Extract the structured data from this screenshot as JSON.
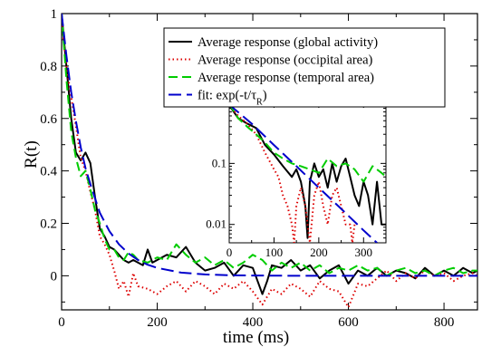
{
  "chart_data": [
    {
      "type": "line",
      "xlabel": "time (ms)",
      "ylabel": "R(t)",
      "xlim": [
        0,
        870
      ],
      "ylim": [
        -0.13,
        1.0
      ],
      "xticks": [
        0,
        200,
        400,
        600,
        800
      ],
      "yticks": [
        0,
        0.2,
        0.4,
        0.6,
        0.8,
        1
      ],
      "xtick_labels": [
        "0",
        "200",
        "400",
        "600",
        "800"
      ],
      "ytick_labels": [
        "0",
        "0.2",
        "0.4",
        "0.6",
        "0.8",
        "1"
      ],
      "legend_position": "top-right",
      "series": [
        {
          "name": "Average response (global activity)",
          "color": "#000000",
          "dash": "solid",
          "x": [
            0,
            10,
            20,
            30,
            40,
            50,
            60,
            70,
            80,
            90,
            100,
            110,
            120,
            130,
            140,
            150,
            160,
            170,
            180,
            190,
            200,
            220,
            240,
            260,
            280,
            300,
            320,
            340,
            360,
            380,
            400,
            410,
            420,
            430,
            440,
            460,
            480,
            500,
            520,
            540,
            560,
            580,
            600,
            620,
            640,
            660,
            680,
            700,
            720,
            740,
            760,
            780,
            800,
            820,
            840,
            860,
            870
          ],
          "y": [
            1.0,
            0.8,
            0.6,
            0.47,
            0.44,
            0.47,
            0.43,
            0.3,
            0.18,
            0.15,
            0.11,
            0.1,
            0.08,
            0.06,
            0.05,
            0.06,
            0.05,
            0.04,
            0.1,
            0.05,
            0.06,
            0.08,
            0.07,
            0.11,
            0.05,
            0.02,
            0.03,
            0.05,
            0.0,
            0.04,
            0.03,
            -0.02,
            -0.07,
            -0.02,
            0.04,
            0.03,
            0.06,
            0.02,
            0.04,
            -0.01,
            0.02,
            0.04,
            -0.03,
            0.02,
            0.0,
            0.03,
            0.0,
            0.02,
            0.01,
            -0.01,
            0.03,
            0.0,
            0.02,
            0.0,
            0.03,
            0.01,
            0.02
          ]
        },
        {
          "name": "Average response (occipital area)",
          "color": "#dd0000",
          "dash": "dotted",
          "x": [
            0,
            10,
            20,
            30,
            40,
            50,
            60,
            70,
            80,
            90,
            100,
            110,
            120,
            130,
            140,
            150,
            160,
            180,
            200,
            220,
            240,
            260,
            280,
            300,
            320,
            340,
            360,
            380,
            400,
            420,
            440,
            460,
            480,
            500,
            520,
            540,
            560,
            580,
            600,
            620,
            640,
            660,
            680,
            700,
            720,
            740,
            760,
            780,
            800,
            820,
            840,
            860,
            870
          ],
          "y": [
            0.97,
            0.8,
            0.68,
            0.57,
            0.45,
            0.4,
            0.32,
            0.25,
            0.15,
            0.12,
            0.08,
            0.02,
            -0.05,
            -0.02,
            -0.08,
            0.01,
            -0.04,
            -0.05,
            -0.07,
            -0.04,
            -0.02,
            -0.06,
            -0.02,
            -0.04,
            -0.07,
            -0.03,
            -0.05,
            -0.02,
            -0.06,
            -0.11,
            -0.05,
            -0.07,
            -0.03,
            -0.05,
            -0.08,
            -0.02,
            -0.05,
            -0.06,
            -0.12,
            -0.03,
            -0.04,
            -0.01,
            0.02,
            -0.02,
            0.01,
            -0.01,
            0.02,
            0.0,
            0.01,
            -0.02,
            0.0,
            0.01,
            0.0
          ]
        },
        {
          "name": "Average response (temporal area)",
          "color": "#00cc00",
          "dash": "longdash",
          "x": [
            0,
            10,
            20,
            30,
            40,
            50,
            60,
            70,
            80,
            90,
            100,
            110,
            120,
            130,
            140,
            150,
            160,
            180,
            200,
            220,
            240,
            260,
            280,
            300,
            320,
            340,
            360,
            380,
            400,
            420,
            440,
            460,
            480,
            500,
            520,
            540,
            560,
            580,
            600,
            620,
            640,
            660,
            680,
            700,
            720,
            740,
            760,
            780,
            800,
            820,
            840,
            860,
            870
          ],
          "y": [
            1.0,
            0.75,
            0.55,
            0.45,
            0.38,
            0.4,
            0.33,
            0.25,
            0.2,
            0.14,
            0.1,
            0.1,
            0.07,
            0.06,
            0.09,
            0.08,
            0.06,
            0.05,
            0.07,
            0.06,
            0.12,
            0.08,
            0.05,
            0.07,
            0.04,
            0.06,
            0.03,
            0.05,
            0.08,
            0.06,
            0.02,
            0.05,
            0.03,
            0.05,
            0.02,
            0.04,
            0.01,
            0.03,
            0.02,
            0.04,
            0.02,
            0.03,
            0.0,
            0.02,
            0.03,
            0.01,
            0.02,
            0.0,
            0.02,
            0.03,
            0.01,
            0.02,
            0.02
          ]
        },
        {
          "name": "fit: exp(-t/τ_R)",
          "color": "#0000cc",
          "dash": "dashed",
          "x": [
            0,
            10,
            20,
            30,
            40,
            50,
            60,
            80,
            100,
            120,
            140,
            160,
            180,
            200,
            250,
            300,
            350,
            400,
            500,
            600,
            700,
            800,
            870
          ],
          "y": [
            1.0,
            0.84,
            0.7,
            0.59,
            0.49,
            0.41,
            0.35,
            0.24,
            0.17,
            0.12,
            0.085,
            0.06,
            0.042,
            0.03,
            0.012,
            0.005,
            0.002,
            0.001,
            0.0,
            0.0,
            0.0,
            0.0,
            0.0
          ]
        }
      ]
    },
    {
      "type": "line",
      "inset": true,
      "yscale": "log",
      "xlim": [
        0,
        350
      ],
      "ylim": [
        0.005,
        1.0
      ],
      "xticks": [
        0,
        100,
        200,
        300
      ],
      "yticks": [
        1,
        0.1,
        0.01
      ],
      "xtick_labels": [
        "0",
        "100",
        "200",
        "300"
      ],
      "ytick_labels": [
        "1",
        "0.1",
        "0.01"
      ],
      "series": [
        {
          "name": "Average response (global activity)",
          "color": "#000000",
          "dash": "solid",
          "x": [
            0,
            20,
            40,
            60,
            80,
            100,
            120,
            140,
            150,
            160,
            170,
            175,
            180,
            190,
            200,
            210,
            220,
            230,
            240,
            250,
            260,
            270,
            280,
            290,
            300,
            310,
            320,
            330,
            340,
            350
          ],
          "y": [
            0.9,
            0.55,
            0.45,
            0.38,
            0.2,
            0.14,
            0.09,
            0.06,
            0.08,
            0.05,
            0.02,
            0.006,
            0.05,
            0.1,
            0.06,
            0.08,
            0.04,
            0.1,
            0.05,
            0.09,
            0.12,
            0.06,
            0.03,
            0.02,
            0.05,
            0.03,
            0.01,
            0.05,
            0.01,
            0.01
          ]
        },
        {
          "name": "Average response (occipital area)",
          "color": "#dd0000",
          "dash": "dotted",
          "x": [
            0,
            20,
            40,
            60,
            80,
            100,
            110,
            120,
            130,
            140,
            145,
            150,
            160,
            170,
            180,
            190,
            200,
            210,
            220,
            230,
            240,
            250,
            260,
            270,
            275,
            280
          ],
          "y": [
            0.9,
            0.6,
            0.45,
            0.3,
            0.15,
            0.08,
            0.06,
            0.03,
            0.02,
            0.01,
            0.005,
            0.02,
            0.04,
            0.02,
            0.005,
            0.03,
            0.05,
            0.02,
            0.01,
            0.03,
            0.04,
            0.02,
            0.01,
            0.01,
            0.005,
            0.01
          ]
        },
        {
          "name": "Average response (temporal area)",
          "color": "#00cc00",
          "dash": "longdash",
          "x": [
            0,
            20,
            40,
            60,
            80,
            100,
            120,
            140,
            160,
            180,
            200,
            220,
            240,
            260,
            280,
            300,
            320,
            340,
            350
          ],
          "y": [
            0.95,
            0.55,
            0.4,
            0.3,
            0.22,
            0.15,
            0.12,
            0.1,
            0.09,
            0.08,
            0.07,
            0.12,
            0.09,
            0.1,
            0.08,
            0.05,
            0.09,
            0.07,
            0.06
          ]
        },
        {
          "name": "fit: exp(-t/τ_R)",
          "color": "#0000cc",
          "dash": "dashed",
          "x": [
            0,
            50,
            100,
            150,
            200,
            250,
            300,
            330
          ],
          "y": [
            0.92,
            0.45,
            0.2,
            0.09,
            0.04,
            0.018,
            0.008,
            0.005
          ]
        }
      ]
    }
  ]
}
